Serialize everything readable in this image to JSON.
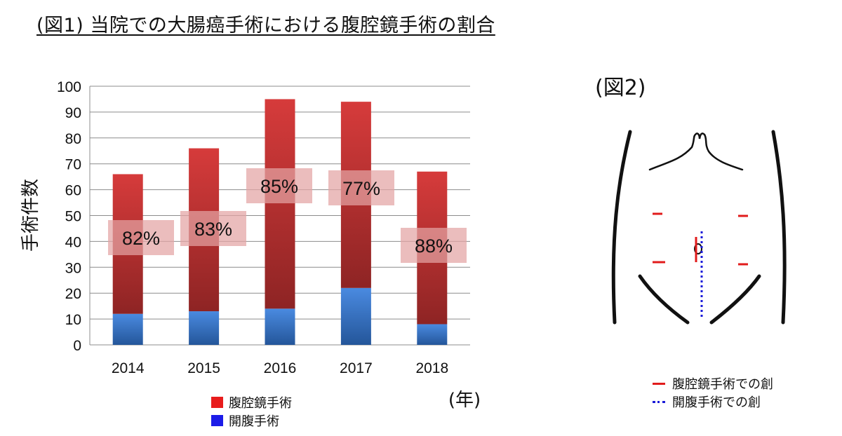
{
  "figure1": {
    "title": "(図1) 当院での大腸癌手術における腹腔鏡手術の割合"
  },
  "chart_data": {
    "type": "bar",
    "stacked": true,
    "categories": [
      "2014",
      "2015",
      "2016",
      "2017",
      "2018"
    ],
    "series": [
      {
        "name": "開腹手術",
        "values": [
          12,
          13,
          14,
          22,
          8
        ],
        "color": "#3a79c4"
      },
      {
        "name": "腹腔鏡手術",
        "values": [
          54,
          63,
          81,
          72,
          59
        ],
        "color": "#d63b3b"
      }
    ],
    "ratio_labels": [
      "82%",
      "83%",
      "85%",
      "77%",
      "88%"
    ],
    "ylabel": "手術件数",
    "xlabel": "(年)",
    "ylim": [
      0,
      100
    ],
    "yticks": [
      0,
      10,
      20,
      30,
      40,
      50,
      60,
      70,
      80,
      90,
      100
    ],
    "grid": true,
    "legend_position": "bottom-center"
  },
  "figure2": {
    "title": "(図2)",
    "legend": [
      {
        "label": "腹腔鏡手術での創",
        "style": "solid",
        "color": "#e11b1b"
      },
      {
        "label": "開腹手術での創",
        "style": "dotted",
        "color": "#1a1ad8"
      }
    ]
  }
}
